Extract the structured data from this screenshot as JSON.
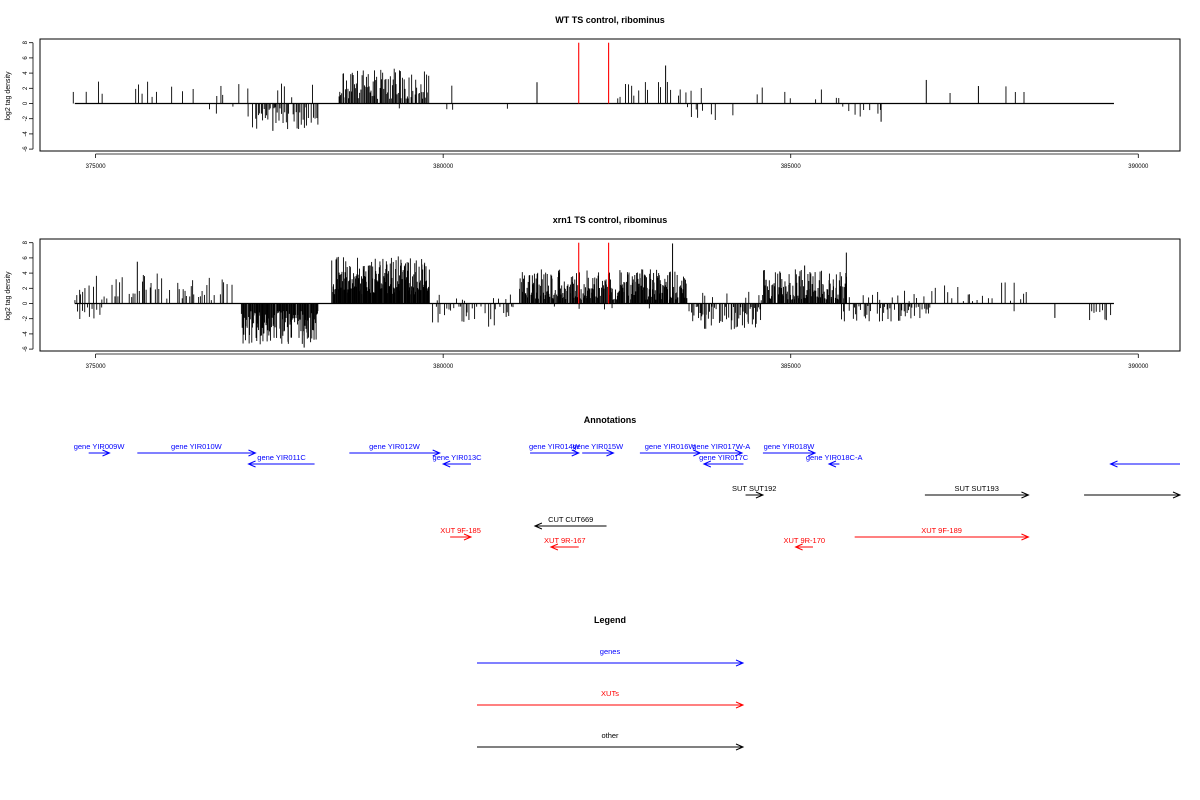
{
  "chart_data": [
    {
      "type": "bar",
      "title": "WT TS control, ribominus",
      "ylabel": "log2 tag density",
      "xlim": [
        374200,
        390600
      ],
      "ylim": [
        -6,
        8
      ],
      "xticks": [
        375000,
        380000,
        385000,
        390000
      ],
      "yticks": [
        -6,
        -4,
        -2,
        0,
        2,
        4,
        6,
        8
      ],
      "grid": false,
      "baseline_range": [
        374700,
        389650
      ],
      "marker_color": "#ff0000",
      "markers": [
        381950,
        382380
      ],
      "marker_height": 8,
      "regions": [
        {
          "x0": 374700,
          "x1": 378200,
          "lo": 0.3,
          "hi": 3.0,
          "sign": 1,
          "step": 55,
          "density": 0.38
        },
        {
          "x0": 376600,
          "x1": 377000,
          "lo": 0.4,
          "hi": 1.6,
          "sign": -1,
          "step": 120,
          "density": 0.6
        },
        {
          "x0": 377200,
          "x1": 378200,
          "lo": 0.5,
          "hi": 3.4,
          "sign": -1,
          "step": 20,
          "density": 0.85
        },
        {
          "x0": 378500,
          "x1": 379800,
          "lo": 0.6,
          "hi": 4.6,
          "sign": 1,
          "step": 14,
          "density": 0.97
        },
        {
          "x0": 379000,
          "x1": 379800,
          "lo": 0.2,
          "hi": 0.9,
          "sign": -1,
          "step": 80,
          "density": 0.4
        },
        {
          "x0": 380000,
          "x1": 381900,
          "lo": 0.3,
          "hi": 2.8,
          "sign": 1,
          "step": 110,
          "density": 0.25
        },
        {
          "x0": 380000,
          "x1": 381800,
          "lo": 0.3,
          "hi": 1.2,
          "sign": -1,
          "step": 160,
          "density": 0.2
        },
        {
          "x0": 382500,
          "x1": 383700,
          "lo": 0.4,
          "hi": 3.0,
          "sign": 1,
          "step": 40,
          "density": 0.5
        },
        {
          "x0": 383500,
          "x1": 384200,
          "lo": 0.4,
          "hi": 2.2,
          "sign": -1,
          "step": 60,
          "density": 0.4
        },
        {
          "x0": 384200,
          "x1": 385800,
          "lo": 0.5,
          "hi": 2.5,
          "sign": 1,
          "step": 65,
          "density": 0.4
        },
        {
          "x0": 385700,
          "x1": 386300,
          "lo": 0.4,
          "hi": 2.6,
          "sign": -1,
          "step": 45,
          "density": 0.55
        },
        {
          "x0": 386600,
          "x1": 388400,
          "lo": 0.6,
          "hi": 2.4,
          "sign": 1,
          "step": 180,
          "density": 0.3
        }
      ],
      "spikes": [
        [
          383200,
          5.0
        ],
        [
          386950,
          3.1
        ],
        [
          387700,
          2.3
        ],
        [
          381350,
          2.8
        ],
        [
          377550,
          -3.6
        ],
        [
          386300,
          -2.4
        ]
      ]
    },
    {
      "type": "bar",
      "title": "xrn1 TS control, ribominus",
      "ylabel": "log2 tag density",
      "xlim": [
        374200,
        390600
      ],
      "ylim": [
        -6,
        8
      ],
      "xticks": [
        375000,
        380000,
        385000,
        390000
      ],
      "yticks": [
        -6,
        -4,
        -2,
        0,
        2,
        4,
        6,
        8
      ],
      "grid": false,
      "baseline_range": [
        374700,
        389650
      ],
      "marker_color": "#ff0000",
      "markers": [
        381950,
        382380
      ],
      "marker_height": 8,
      "regions": [
        {
          "x0": 374700,
          "x1": 377100,
          "lo": 0.4,
          "hi": 4.0,
          "sign": 1,
          "step": 22,
          "density": 0.6
        },
        {
          "x0": 374700,
          "x1": 375200,
          "lo": 0.5,
          "hi": 2.2,
          "sign": -1,
          "step": 35,
          "density": 0.6
        },
        {
          "x0": 377100,
          "x1": 378200,
          "lo": 1.0,
          "hi": 5.4,
          "sign": -1,
          "step": 9,
          "density": 0.98
        },
        {
          "x0": 378400,
          "x1": 379800,
          "lo": 1.2,
          "hi": 6.2,
          "sign": 1,
          "step": 8,
          "density": 0.99
        },
        {
          "x0": 379800,
          "x1": 381000,
          "lo": 0.4,
          "hi": 3.2,
          "sign": -1,
          "step": 25,
          "density": 0.65
        },
        {
          "x0": 379900,
          "x1": 381000,
          "lo": 0.3,
          "hi": 1.6,
          "sign": 1,
          "step": 60,
          "density": 0.3
        },
        {
          "x0": 381100,
          "x1": 383500,
          "lo": 0.5,
          "hi": 4.5,
          "sign": 1,
          "step": 9,
          "density": 0.9
        },
        {
          "x0": 381000,
          "x1": 383000,
          "lo": 0.2,
          "hi": 1.0,
          "sign": -1,
          "step": 90,
          "density": 0.3
        },
        {
          "x0": 383500,
          "x1": 384600,
          "lo": 0.4,
          "hi": 3.6,
          "sign": -1,
          "step": 16,
          "density": 0.8
        },
        {
          "x0": 383500,
          "x1": 384600,
          "lo": 0.3,
          "hi": 1.6,
          "sign": 1,
          "step": 45,
          "density": 0.4
        },
        {
          "x0": 384600,
          "x1": 385800,
          "lo": 0.5,
          "hi": 4.5,
          "sign": 1,
          "step": 10,
          "density": 0.88
        },
        {
          "x0": 385700,
          "x1": 387000,
          "lo": 0.3,
          "hi": 2.4,
          "sign": -1,
          "step": 18,
          "density": 0.7
        },
        {
          "x0": 385800,
          "x1": 387000,
          "lo": 0.3,
          "hi": 1.8,
          "sign": 1,
          "step": 35,
          "density": 0.45
        },
        {
          "x0": 387000,
          "x1": 388600,
          "lo": 0.3,
          "hi": 3.0,
          "sign": 1,
          "step": 45,
          "density": 0.5
        },
        {
          "x0": 387000,
          "x1": 388600,
          "lo": 0.2,
          "hi": 1.4,
          "sign": -1,
          "step": 120,
          "density": 0.2
        },
        {
          "x0": 389300,
          "x1": 389600,
          "lo": 0.5,
          "hi": 2.2,
          "sign": -1,
          "step": 30,
          "density": 0.8
        }
      ],
      "spikes": [
        [
          375600,
          5.5
        ],
        [
          383300,
          7.9
        ],
        [
          385800,
          6.7
        ],
        [
          385200,
          5.0
        ],
        [
          378000,
          -5.8
        ],
        [
          388800,
          -1.9
        ]
      ]
    }
  ],
  "annotations": {
    "title": "Annotations",
    "xlim": [
      374200,
      390600
    ],
    "colors": {
      "gene": "#0000ff",
      "xut": "#ff0000",
      "other": "#000000"
    },
    "features": [
      {
        "label": "gene YIR009W",
        "x0": 374900,
        "x1": 375200,
        "dir": 1,
        "track": "gene",
        "row": 0
      },
      {
        "label": "gene YIR010W",
        "x0": 375600,
        "x1": 377300,
        "dir": 1,
        "track": "gene",
        "row": 0
      },
      {
        "label": "gene YIR011C",
        "x0": 377200,
        "x1": 378150,
        "dir": -1,
        "track": "gene",
        "row": 1
      },
      {
        "label": "gene YIR012W",
        "x0": 378650,
        "x1": 379950,
        "dir": 1,
        "track": "gene",
        "row": 0
      },
      {
        "label": "gene YIR013C",
        "x0": 380000,
        "x1": 380400,
        "dir": -1,
        "track": "gene",
        "row": 1
      },
      {
        "label": "gene YIR014W",
        "x0": 381250,
        "x1": 381950,
        "dir": 1,
        "track": "gene",
        "row": 0
      },
      {
        "label": "gene YIR015W",
        "x0": 382000,
        "x1": 382450,
        "dir": 1,
        "track": "gene",
        "row": 0
      },
      {
        "label": "gene YIR016W",
        "x0": 382830,
        "x1": 383700,
        "dir": 1,
        "track": "gene",
        "row": 0
      },
      {
        "label": "gene YIR017W-A",
        "x0": 383700,
        "x1": 384300,
        "dir": 1,
        "track": "gene",
        "row": 0
      },
      {
        "label": "gene YIR017C",
        "x0": 383750,
        "x1": 384320,
        "dir": -1,
        "track": "gene",
        "row": 1
      },
      {
        "label": "gene YIR018W",
        "x0": 384600,
        "x1": 385350,
        "dir": 1,
        "track": "gene",
        "row": 0
      },
      {
        "label": "gene YIR018C-A",
        "x0": 385550,
        "x1": 385700,
        "dir": -1,
        "track": "gene",
        "row": 1
      },
      {
        "label": "",
        "x0": 389600,
        "x1": 390600,
        "dir": -1,
        "track": "gene",
        "row": 1
      },
      {
        "label": "SUT SUT192",
        "x0": 384350,
        "x1": 384600,
        "dir": 1,
        "track": "other",
        "row": 0
      },
      {
        "label": "SUT SUT193",
        "x0": 386930,
        "x1": 388420,
        "dir": 1,
        "track": "other",
        "row": 0
      },
      {
        "label": "",
        "x0": 389220,
        "x1": 390600,
        "dir": 1,
        "track": "other",
        "row": 0
      },
      {
        "label": "CUT CUT669",
        "x0": 381320,
        "x1": 382350,
        "dir": -1,
        "track": "other",
        "row": 1
      },
      {
        "label": "XUT 9F-185",
        "x0": 380100,
        "x1": 380400,
        "dir": 1,
        "track": "xut",
        "row": 0
      },
      {
        "label": "XUT 9R-167",
        "x0": 381550,
        "x1": 381950,
        "dir": -1,
        "track": "xut",
        "row": 1
      },
      {
        "label": "XUT 9R-170",
        "x0": 385070,
        "x1": 385320,
        "dir": -1,
        "track": "xut",
        "row": 1
      },
      {
        "label": "XUT 9F-189",
        "x0": 385920,
        "x1": 388420,
        "dir": 1,
        "track": "xut",
        "row": 0
      }
    ]
  },
  "legend": {
    "title": "Legend",
    "items": [
      {
        "label": "genes",
        "track": "gene"
      },
      {
        "label": "XUTs",
        "track": "xut"
      },
      {
        "label": "other",
        "track": "other"
      }
    ]
  }
}
